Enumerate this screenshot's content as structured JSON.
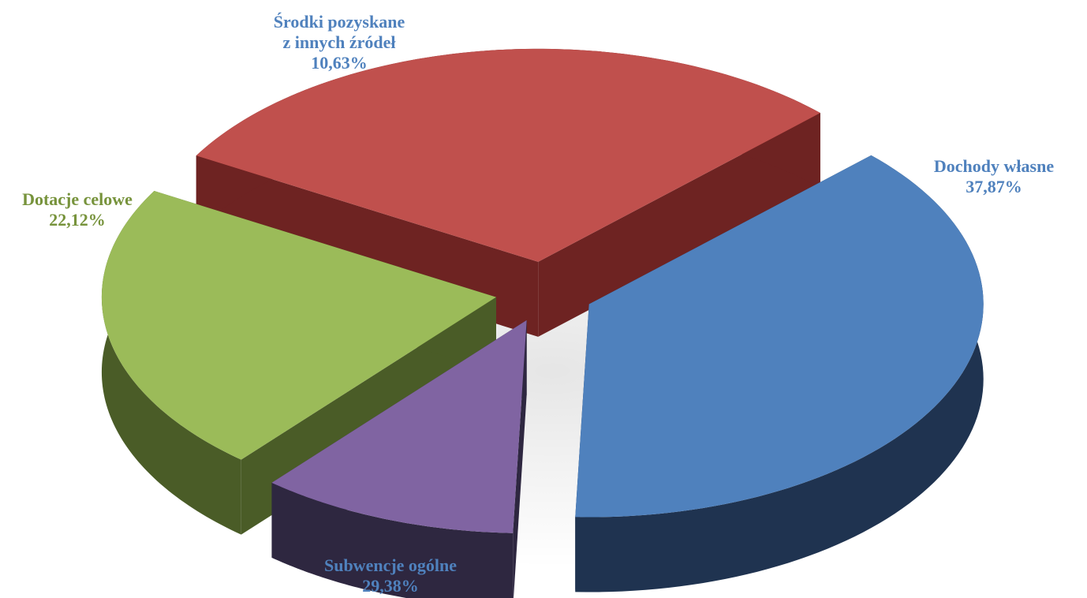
{
  "chart_data": {
    "type": "pie",
    "style": "3d-exploded",
    "slices": [
      {
        "label_lines": [
          "Dochody własne"
        ],
        "value": 37.87,
        "value_label": "37,87%",
        "color_top": "#4F81BD",
        "color_side": "#1F3350",
        "label_color": "#4F81BD"
      },
      {
        "label_lines": [
          "Subwencje ogólne"
        ],
        "value": 29.38,
        "value_label": "29,38%",
        "color_top": "#C0504D",
        "color_side": "#6E2322",
        "label_color": "#4F81BD"
      },
      {
        "label_lines": [
          "Dotacje celowe"
        ],
        "value": 22.12,
        "value_label": "22,12%",
        "color_top": "#9BBB59",
        "color_side": "#4A5C27",
        "label_color": "#77933C"
      },
      {
        "label_lines": [
          "Środki pozyskane",
          "z innych  źródeł"
        ],
        "value": 10.63,
        "value_label": "10,63%",
        "color_top": "#8064A2",
        "color_side": "#2E2740",
        "label_color": "#4F81BD"
      }
    ]
  }
}
